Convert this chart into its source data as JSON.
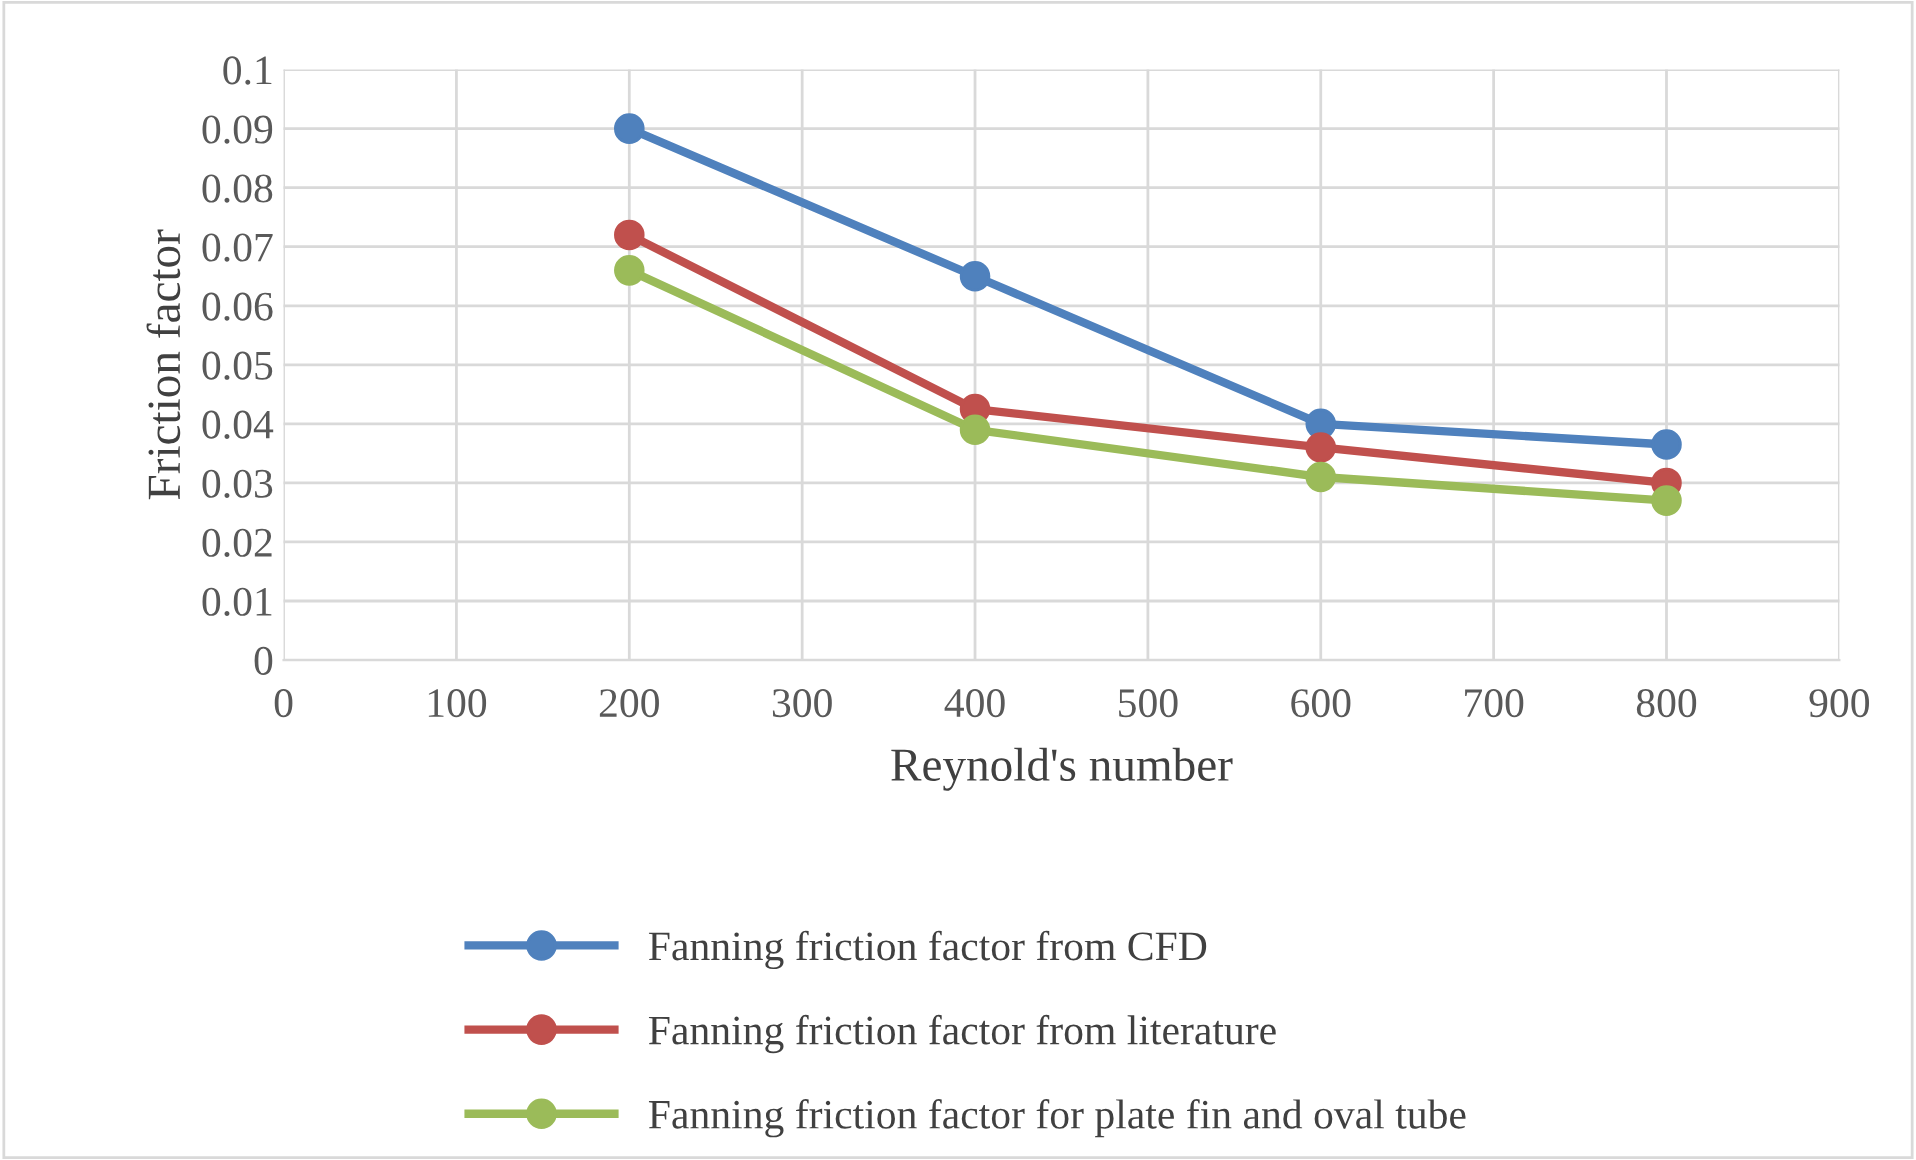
{
  "chart_data": {
    "type": "line",
    "xlabel": "Reynold's number",
    "ylabel": "Friction factor",
    "x": [
      200,
      400,
      600,
      800
    ],
    "series": [
      {
        "name": "Fanning friction factor from CFD",
        "color": "#4f81bd",
        "values": [
          0.09,
          0.065,
          0.04,
          0.0365
        ]
      },
      {
        "name": "Fanning friction factor from literature",
        "color": "#c0504d",
        "values": [
          0.072,
          0.0425,
          0.036,
          0.03
        ]
      },
      {
        "name": "Fanning friction factor for plate fin and oval tube",
        "color": "#9bbb59",
        "values": [
          0.066,
          0.039,
          0.031,
          0.027
        ]
      }
    ],
    "xlim": [
      0,
      900
    ],
    "xticks": [
      0,
      100,
      200,
      300,
      400,
      500,
      600,
      700,
      800,
      900
    ],
    "ylim": [
      0,
      0.1
    ],
    "yticks": [
      0,
      0.01,
      0.02,
      0.03,
      0.04,
      0.05,
      0.06,
      0.07,
      0.08,
      0.09,
      0.1
    ],
    "grid": true,
    "legend": "bottom",
    "marker": "circle",
    "line_style": "solid"
  }
}
